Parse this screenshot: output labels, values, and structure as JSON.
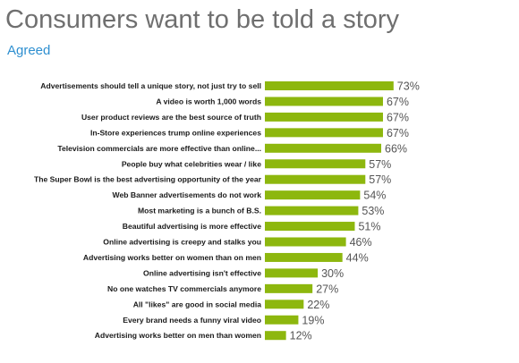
{
  "title": "Consumers want to be told a story",
  "subtitle": "Agreed",
  "colors": {
    "bar": "#8db70e",
    "title": "#6f6f6f",
    "subtitle": "#2e8fd0"
  },
  "chart_data": {
    "type": "bar",
    "orientation": "horizontal",
    "title": "Consumers want to be told a story",
    "subtitle": "Agreed",
    "value_suffix": "%",
    "xlim": [
      0,
      100
    ],
    "grid": false,
    "legend": "none",
    "categories": [
      "Advertisements should tell a unique story, not just try to sell",
      "A video is worth 1,000 words",
      "User product reviews are the best source of truth",
      "In-Store experiences trump online experiences",
      "Television commercials are more effective than online...",
      "People buy what celebrities wear / like",
      "The Super Bowl is the best advertising opportunity of the year",
      "Web Banner advertisements do not work",
      "Most marketing is a bunch of B.S.",
      "Beautiful advertising is more effective",
      "Online advertising is creepy and stalks you",
      "Advertising works better on women than on men",
      "Online advertising isn't effective",
      "No one watches TV commercials anymore",
      "All \"likes\" are good in social media",
      "Every brand needs a funny viral video",
      "Advertising works better on men than women"
    ],
    "values": [
      73,
      67,
      67,
      67,
      66,
      57,
      57,
      54,
      53,
      51,
      46,
      44,
      30,
      27,
      22,
      19,
      12
    ]
  }
}
